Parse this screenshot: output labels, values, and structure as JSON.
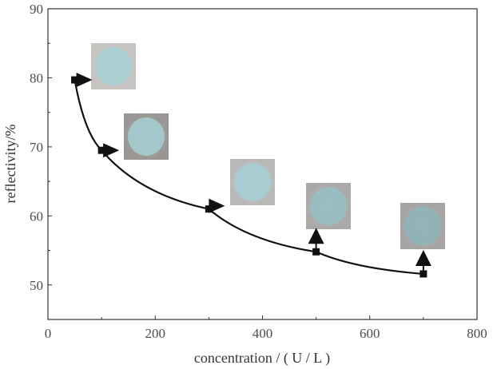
{
  "chart_data": {
    "type": "line",
    "title": "",
    "xlabel": "concentration / ( U / L )",
    "ylabel": "reflectivity/%",
    "xlim": [
      0,
      800
    ],
    "ylim": [
      45,
      90
    ],
    "xticks": [
      "0",
      "200",
      "400",
      "600",
      "800"
    ],
    "yticks": [
      "50",
      "60",
      "70",
      "80",
      "90"
    ],
    "grid": false,
    "series": [
      {
        "x": [
          50,
          100,
          300,
          500,
          700
        ],
        "y": [
          79.7,
          69.5,
          61.0,
          54.8,
          51.6
        ]
      }
    ],
    "insets": [
      {
        "label_for_x": 50,
        "swatch_color": "#a9cfd2",
        "background": "#d9d6d3"
      },
      {
        "label_for_x": 100,
        "swatch_color": "#a3c9cd",
        "background": "#a6a29f"
      },
      {
        "label_for_x": 300,
        "swatch_color": "#a7ccd2",
        "background": "#cbc9c7"
      },
      {
        "label_for_x": 500,
        "swatch_color": "#97bdc1",
        "background": "#bab8b6"
      },
      {
        "label_for_x": 700,
        "swatch_color": "#8fb3b7",
        "background": "#b5b3b1"
      }
    ],
    "colors": {
      "line": "#111111",
      "axis": "#333333"
    }
  }
}
